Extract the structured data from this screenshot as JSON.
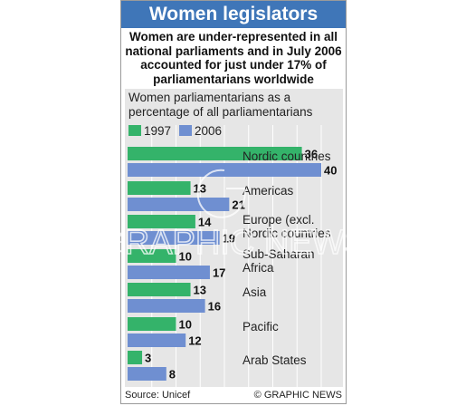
{
  "header": {
    "title": "Women legislators"
  },
  "subtitle": "Women are under-represented in all national parliaments and in July 2006 accounted for just under 17% of parliamentarians worldwide",
  "footer": {
    "source": "Source: Unicef",
    "credit": "© GRAPHIC NEWS"
  },
  "watermark": {
    "brand": "GRAPHIC NEWS"
  },
  "colors": {
    "title_bg": "#3f76b8",
    "series_1997": "#34b36a",
    "series_2006": "#6f8fd1",
    "panel_bg": "#e6e6e6"
  },
  "chart_data": {
    "type": "bar",
    "orientation": "horizontal",
    "title": "Women parliamentarians as a percentage of all parliamentarians",
    "categories": [
      "Nordic countries",
      "Americas",
      "Europe (excl. Nordic countries)",
      "Sub-Saharan Africa",
      "Asia",
      "Pacific",
      "Arab States"
    ],
    "category_lines": [
      [
        "Nordic countries"
      ],
      [
        "Americas"
      ],
      [
        "Europe (excl.",
        "Nordic countries"
      ],
      [
        "Sub-Saharan",
        "Africa"
      ],
      [
        "Asia"
      ],
      [
        "Pacific"
      ],
      [
        "Arab States"
      ]
    ],
    "series": [
      {
        "name": "1997",
        "values": [
          36,
          13,
          14,
          10,
          13,
          10,
          3
        ]
      },
      {
        "name": "2006",
        "values": [
          40,
          21,
          19,
          17,
          16,
          12,
          8
        ]
      }
    ],
    "value_labels": [
      [
        "36",
        "13",
        "14",
        "10",
        "13",
        "10",
        "3"
      ],
      [
        "40",
        "21",
        "19",
        "17",
        "16",
        "12",
        "8"
      ]
    ],
    "xlim": [
      0,
      40
    ],
    "grid": true,
    "legend": "top-left"
  }
}
